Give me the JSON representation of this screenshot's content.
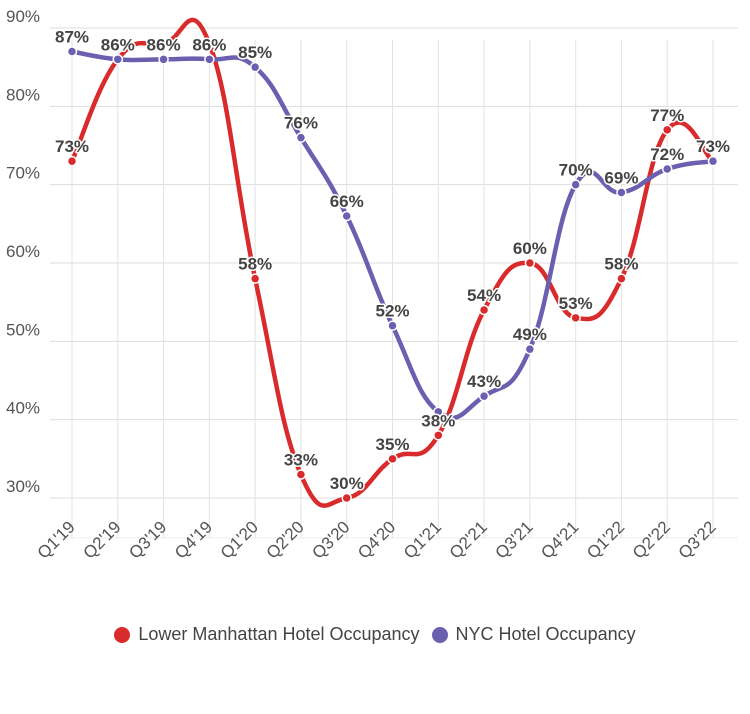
{
  "chart_data": {
    "type": "line",
    "title": "",
    "xlabel": "",
    "ylabel": "",
    "ylim": [
      30,
      90
    ],
    "yticks": [
      "30%",
      "40%",
      "50%",
      "60%",
      "70%",
      "80%",
      "90%"
    ],
    "ytick_values": [
      30,
      40,
      50,
      60,
      70,
      80,
      90
    ],
    "categories": [
      "Q1'19",
      "Q2'19",
      "Q3'19",
      "Q4'19",
      "Q1'20",
      "Q2'20",
      "Q3'20",
      "Q4'20",
      "Q1'21",
      "Q2'21",
      "Q3'21",
      "Q4'21",
      "Q1'22",
      "Q2'22",
      "Q3'22"
    ],
    "grid": true,
    "legend_position": "bottom",
    "series": [
      {
        "name": "Lower Manhattan Hotel Occupancy",
        "color": "#d92b2b",
        "values": [
          73,
          86,
          88,
          88,
          58,
          33,
          30,
          35,
          38,
          54,
          60,
          53,
          58,
          77,
          73
        ],
        "labels": [
          "73%",
          "",
          "",
          "",
          "58%",
          "33%",
          "30%",
          "35%",
          "38%",
          "54%",
          "60%",
          "53%",
          "58%",
          "77%",
          ""
        ]
      },
      {
        "name": "NYC Hotel Occupancy",
        "color": "#6b5fb0",
        "values": [
          87,
          86,
          86,
          86,
          85,
          76,
          66,
          52,
          41,
          43,
          49,
          70,
          69,
          72,
          73
        ],
        "labels": [
          "87%",
          "86%",
          "86%",
          "86%",
          "85%",
          "76%",
          "66%",
          "52%",
          "",
          "43%",
          "49%",
          "70%",
          "69%",
          "72%",
          "73%"
        ]
      }
    ]
  }
}
